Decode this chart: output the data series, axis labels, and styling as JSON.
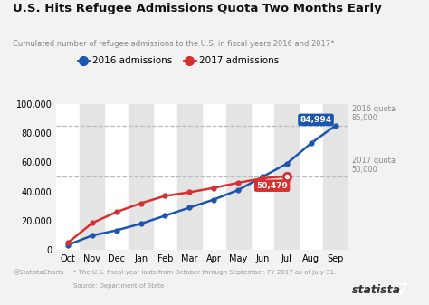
{
  "title": "U.S. Hits Refugee Admissions Quota Two Months Early",
  "subtitle": "Cumulated number of refugee admissions to the U.S. in fiscal years 2016 and 2017*",
  "months": [
    "Oct",
    "Nov",
    "Dec",
    "Jan",
    "Feb",
    "Mar",
    "Apr",
    "May",
    "Jun",
    "Jul",
    "Aug",
    "Sep"
  ],
  "y2016": [
    3500,
    10000,
    13500,
    18000,
    23500,
    29000,
    34500,
    41000,
    50000,
    59000,
    73000,
    84994
  ],
  "y2017": [
    5000,
    18500,
    26000,
    32000,
    37000,
    39500,
    42500,
    46000,
    49000,
    50479
  ],
  "quota_2016": 85000,
  "quota_2017": 50000,
  "label_2016": "84,994",
  "label_2017": "50,479",
  "line_color_2016": "#1a56b0",
  "line_color_2017": "#d63030",
  "bg_color": "#f2f2f2",
  "plot_bg": "#ffffff",
  "stripe_color": "#e4e4e4",
  "footnote": "* The U.S. fiscal year lasts from October through September. FY 2017 as of July 31.",
  "source": "Source: Department of State",
  "watermark": "@StatistaCharts",
  "branding": "statista"
}
